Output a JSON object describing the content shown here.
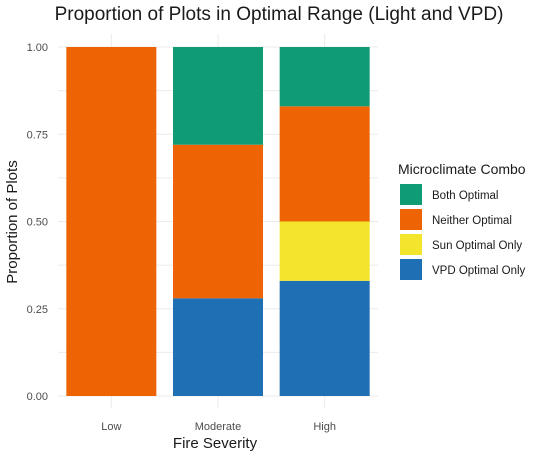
{
  "chart_data": {
    "type": "bar",
    "stacked": true,
    "title": "Proportion of Plots in Optimal Range  (Light and VPD)",
    "xlabel": "Fire Severity",
    "ylabel": "Proportion of Plots",
    "categories": [
      "Low",
      "Moderate",
      "High"
    ],
    "ylim": [
      0,
      1
    ],
    "yticks": [
      "0.00",
      "0.25",
      "0.50",
      "0.75",
      "1.00"
    ],
    "grid": true,
    "legend": {
      "title": "Microclimate Combo",
      "position": "right",
      "entries": [
        "Both Optimal",
        "Neither Optimal",
        "Sun Optimal Only",
        "VPD Optimal Only"
      ]
    },
    "colors": {
      "Both Optimal": "#0f9b73",
      "Neither Optimal": "#ee6405",
      "Sun Optimal Only": "#f2e52c",
      "VPD Optimal Only": "#1f6fb4"
    },
    "series": [
      {
        "name": "VPD Optimal Only",
        "values": [
          0.0,
          0.28,
          0.33
        ]
      },
      {
        "name": "Sun Optimal Only",
        "values": [
          0.0,
          0.0,
          0.17
        ]
      },
      {
        "name": "Neither Optimal",
        "values": [
          1.0,
          0.44,
          0.33
        ]
      },
      {
        "name": "Both Optimal",
        "values": [
          0.0,
          0.28,
          0.17
        ]
      }
    ]
  }
}
